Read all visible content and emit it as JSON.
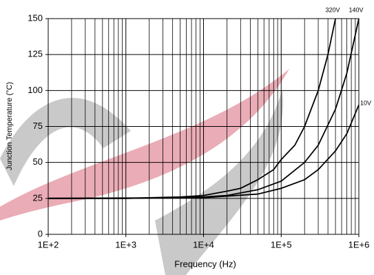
{
  "chart_data": {
    "type": "line",
    "x_label": "Frequency (Hz)",
    "y_label": "Junction Temperature (°C)",
    "log_x": true,
    "grid": true,
    "minor_grid": true,
    "xlim": [
      100,
      1000000
    ],
    "xticks": [
      {
        "value": 100,
        "label": "1E+2"
      },
      {
        "value": 1000,
        "label": "1E+3"
      },
      {
        "value": 10000,
        "label": "1E+4"
      },
      {
        "value": 100000,
        "label": "1E+5"
      },
      {
        "value": 1000000,
        "label": "1E+6"
      }
    ],
    "ylim": [
      0,
      150
    ],
    "yticks": [
      0,
      25,
      50,
      75,
      100,
      125,
      150
    ],
    "series": [
      {
        "name": "320V",
        "color": "#000000",
        "x": [
          100,
          1000,
          5000,
          10000,
          20000,
          30000,
          50000,
          80000,
          100000,
          150000,
          200000,
          300000,
          400000,
          500000
        ],
        "values": [
          25,
          25,
          26,
          27,
          30,
          32,
          38,
          45,
          52,
          62,
          75,
          100,
          125,
          150
        ]
      },
      {
        "name": "140V",
        "color": "#000000",
        "x": [
          100,
          1000,
          10000,
          20000,
          50000,
          100000,
          200000,
          300000,
          500000,
          700000,
          1000000
        ],
        "values": [
          25,
          25,
          26,
          27,
          31,
          37,
          50,
          62,
          87,
          112,
          150
        ]
      },
      {
        "name": "10V",
        "color": "#000000",
        "x": [
          100,
          10000,
          50000,
          100000,
          200000,
          300000,
          500000,
          700000,
          1000000
        ],
        "values": [
          25,
          25.5,
          28,
          32,
          38,
          45,
          58,
          70,
          90
        ]
      }
    ]
  }
}
